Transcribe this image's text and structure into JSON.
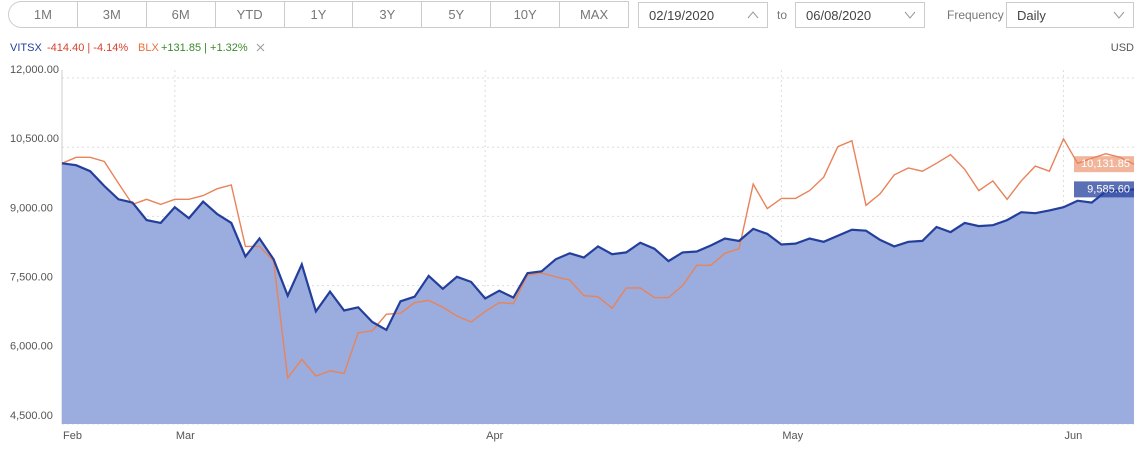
{
  "toolbar": {
    "ranges": [
      "1M",
      "3M",
      "6M",
      "YTD",
      "1Y",
      "3Y",
      "5Y",
      "10Y",
      "MAX"
    ],
    "start_date": "02/19/2020",
    "to": "to",
    "end_date": "06/08/2020",
    "frequency_label": "Frequency",
    "frequency": "Daily"
  },
  "legend": {
    "currency": "USD"
  },
  "chart_data": {
    "type": "line",
    "categories": [
      "Feb",
      null,
      null,
      null,
      null,
      null,
      null,
      null,
      "Mar",
      null,
      null,
      null,
      null,
      null,
      null,
      null,
      null,
      null,
      null,
      null,
      null,
      null,
      null,
      null,
      null,
      null,
      null,
      null,
      null,
      null,
      "Apr",
      null,
      null,
      null,
      null,
      null,
      null,
      null,
      null,
      null,
      null,
      null,
      null,
      null,
      null,
      null,
      null,
      null,
      null,
      null,
      null,
      "May",
      null,
      null,
      null,
      null,
      null,
      null,
      null,
      null,
      null,
      null,
      null,
      null,
      null,
      null,
      null,
      null,
      null,
      null,
      null,
      "Jun",
      null,
      null,
      null,
      null,
      null
    ],
    "series": [
      {
        "name": "VITSX",
        "change": "-414.40 | -4.14%",
        "color": "#243f9b",
        "area_color": "#9badde",
        "change_color": "#d9402b",
        "values": [
          10150,
          10110,
          9980,
          9660,
          9370,
          9300,
          8920,
          8860,
          9200,
          8960,
          9320,
          9050,
          8860,
          8130,
          8520,
          8070,
          7280,
          7960,
          6940,
          7370,
          6960,
          7030,
          6710,
          6540,
          7160,
          7260,
          7710,
          7430,
          7690,
          7580,
          7220,
          7390,
          7240,
          7770,
          7810,
          8070,
          8200,
          8110,
          8350,
          8180,
          8220,
          8430,
          8300,
          8030,
          8220,
          8240,
          8370,
          8520,
          8470,
          8730,
          8620,
          8390,
          8410,
          8520,
          8450,
          8580,
          8710,
          8690,
          8490,
          8350,
          8450,
          8470,
          8770,
          8660,
          8860,
          8790,
          8810,
          8920,
          9090,
          9070,
          9130,
          9200,
          9340,
          9300,
          9540,
          9560,
          9585.6
        ],
        "value_labels": [
          null,
          null,
          null,
          null,
          null,
          null,
          null,
          null,
          null,
          null,
          null,
          null,
          null,
          null,
          null,
          null,
          null,
          null,
          null,
          null,
          null,
          null,
          null,
          null,
          null,
          null,
          null,
          null,
          null,
          null,
          null,
          null,
          null,
          null,
          null,
          null,
          null,
          null,
          null,
          null,
          null,
          null,
          null,
          null,
          null,
          null,
          null,
          null,
          null,
          null,
          null,
          null,
          null,
          null,
          null,
          null,
          null,
          null,
          null,
          null,
          null,
          null,
          null,
          null,
          null,
          null,
          null,
          null,
          null,
          null,
          null,
          null,
          null,
          null,
          null,
          null,
          "9,585.60"
        ]
      },
      {
        "name": "BLX",
        "change": "+131.85 | +1.32%",
        "color": "#e8835a",
        "change_color": "#3a8a2a",
        "values": [
          10150,
          10280,
          10280,
          10190,
          9720,
          9260,
          9370,
          9260,
          9370,
          9370,
          9450,
          9600,
          9680,
          8350,
          8350,
          8030,
          5500,
          5900,
          5540,
          5650,
          5600,
          6480,
          6520,
          6880,
          6900,
          7130,
          7180,
          7030,
          6840,
          6710,
          6940,
          7130,
          7110,
          7730,
          7770,
          7690,
          7620,
          7280,
          7260,
          7010,
          7450,
          7450,
          7240,
          7240,
          7500,
          7940,
          7940,
          8200,
          8300,
          9700,
          9170,
          9390,
          9390,
          9560,
          9850,
          10510,
          10640,
          9240,
          9490,
          9900,
          10050,
          9980,
          10150,
          10340,
          10020,
          9560,
          9770,
          9370,
          9770,
          10090,
          9980,
          10680,
          10150,
          10260,
          10360,
          10280,
          10131.85
        ],
        "value_labels": [
          null,
          null,
          null,
          null,
          null,
          null,
          null,
          null,
          null,
          null,
          null,
          null,
          null,
          null,
          null,
          null,
          null,
          null,
          null,
          null,
          null,
          null,
          null,
          null,
          null,
          null,
          null,
          null,
          null,
          null,
          null,
          null,
          null,
          null,
          null,
          null,
          null,
          null,
          null,
          null,
          null,
          null,
          null,
          null,
          null,
          null,
          null,
          null,
          null,
          null,
          null,
          null,
          null,
          null,
          null,
          null,
          null,
          null,
          null,
          null,
          null,
          null,
          null,
          null,
          null,
          null,
          null,
          null,
          null,
          null,
          null,
          null,
          null,
          null,
          null,
          null,
          "10,131.85"
        ]
      }
    ],
    "ylim": [
      4500,
      12000
    ],
    "yticks": [
      {
        "value": 4500,
        "label": "4,500.00"
      },
      {
        "value": 6000,
        "label": "6,000.00"
      },
      {
        "value": 7500,
        "label": "7,500.00"
      },
      {
        "value": 9000,
        "label": "9,000.00"
      },
      {
        "value": 10500,
        "label": "10,500.00"
      },
      {
        "value": 12000,
        "label": "12,000.00"
      }
    ],
    "grid": true
  }
}
